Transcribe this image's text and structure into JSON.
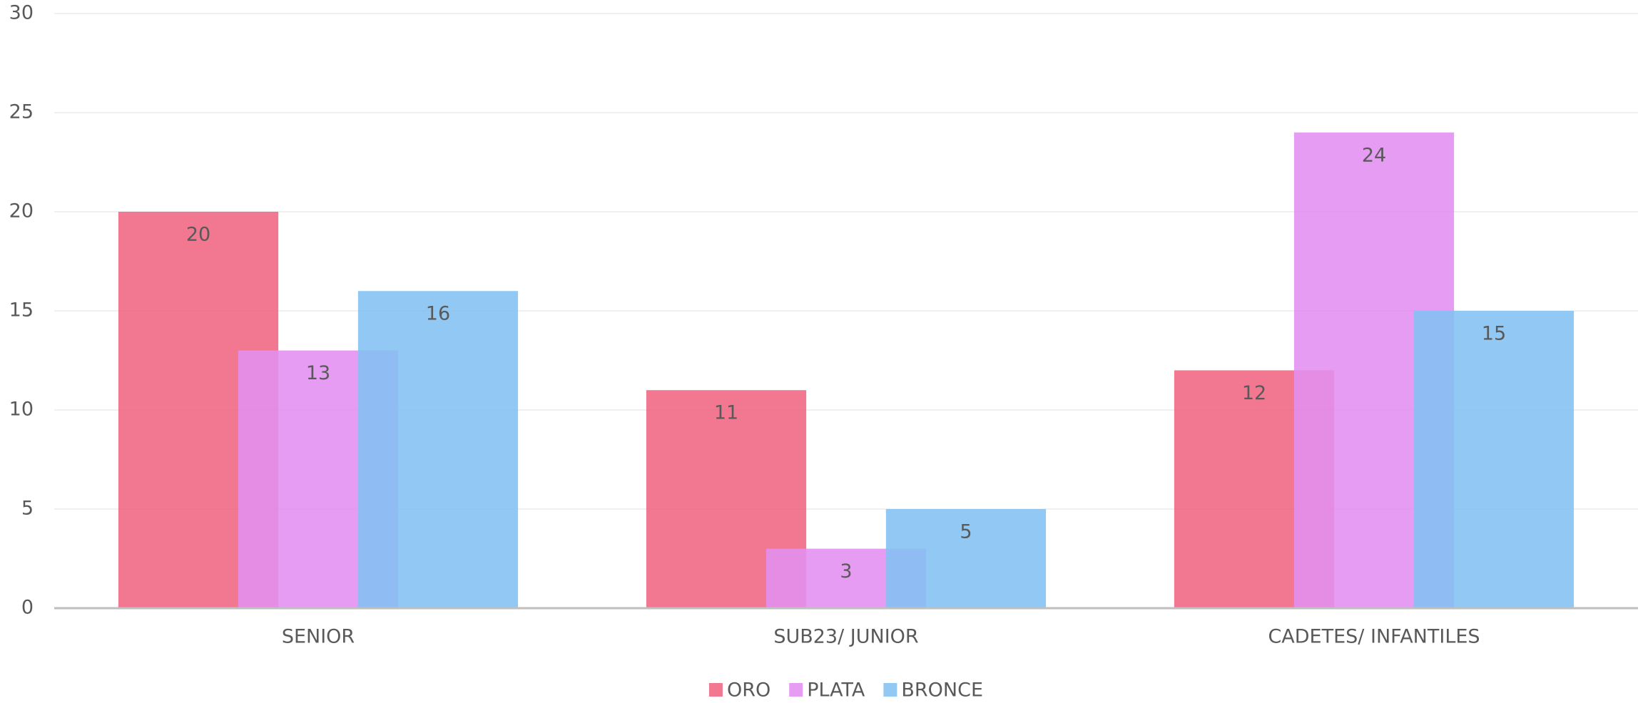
{
  "chart_data": {
    "type": "bar",
    "categories": [
      "SENIOR",
      "SUB23/ JUNIOR",
      "CADETES/ INFANTILES"
    ],
    "series": [
      {
        "name": "ORO",
        "color": "#f06582",
        "values": [
          20,
          11,
          12
        ]
      },
      {
        "name": "PLATA",
        "color": "#e38ef0",
        "values": [
          13,
          3,
          24
        ]
      },
      {
        "name": "BRONCE",
        "color": "#82c0f2",
        "values": [
          16,
          5,
          15
        ]
      }
    ],
    "ylim": [
      0,
      30
    ],
    "yticks": [
      0,
      5,
      10,
      15,
      20,
      25,
      30
    ],
    "grid": true,
    "legend": "bottom"
  }
}
